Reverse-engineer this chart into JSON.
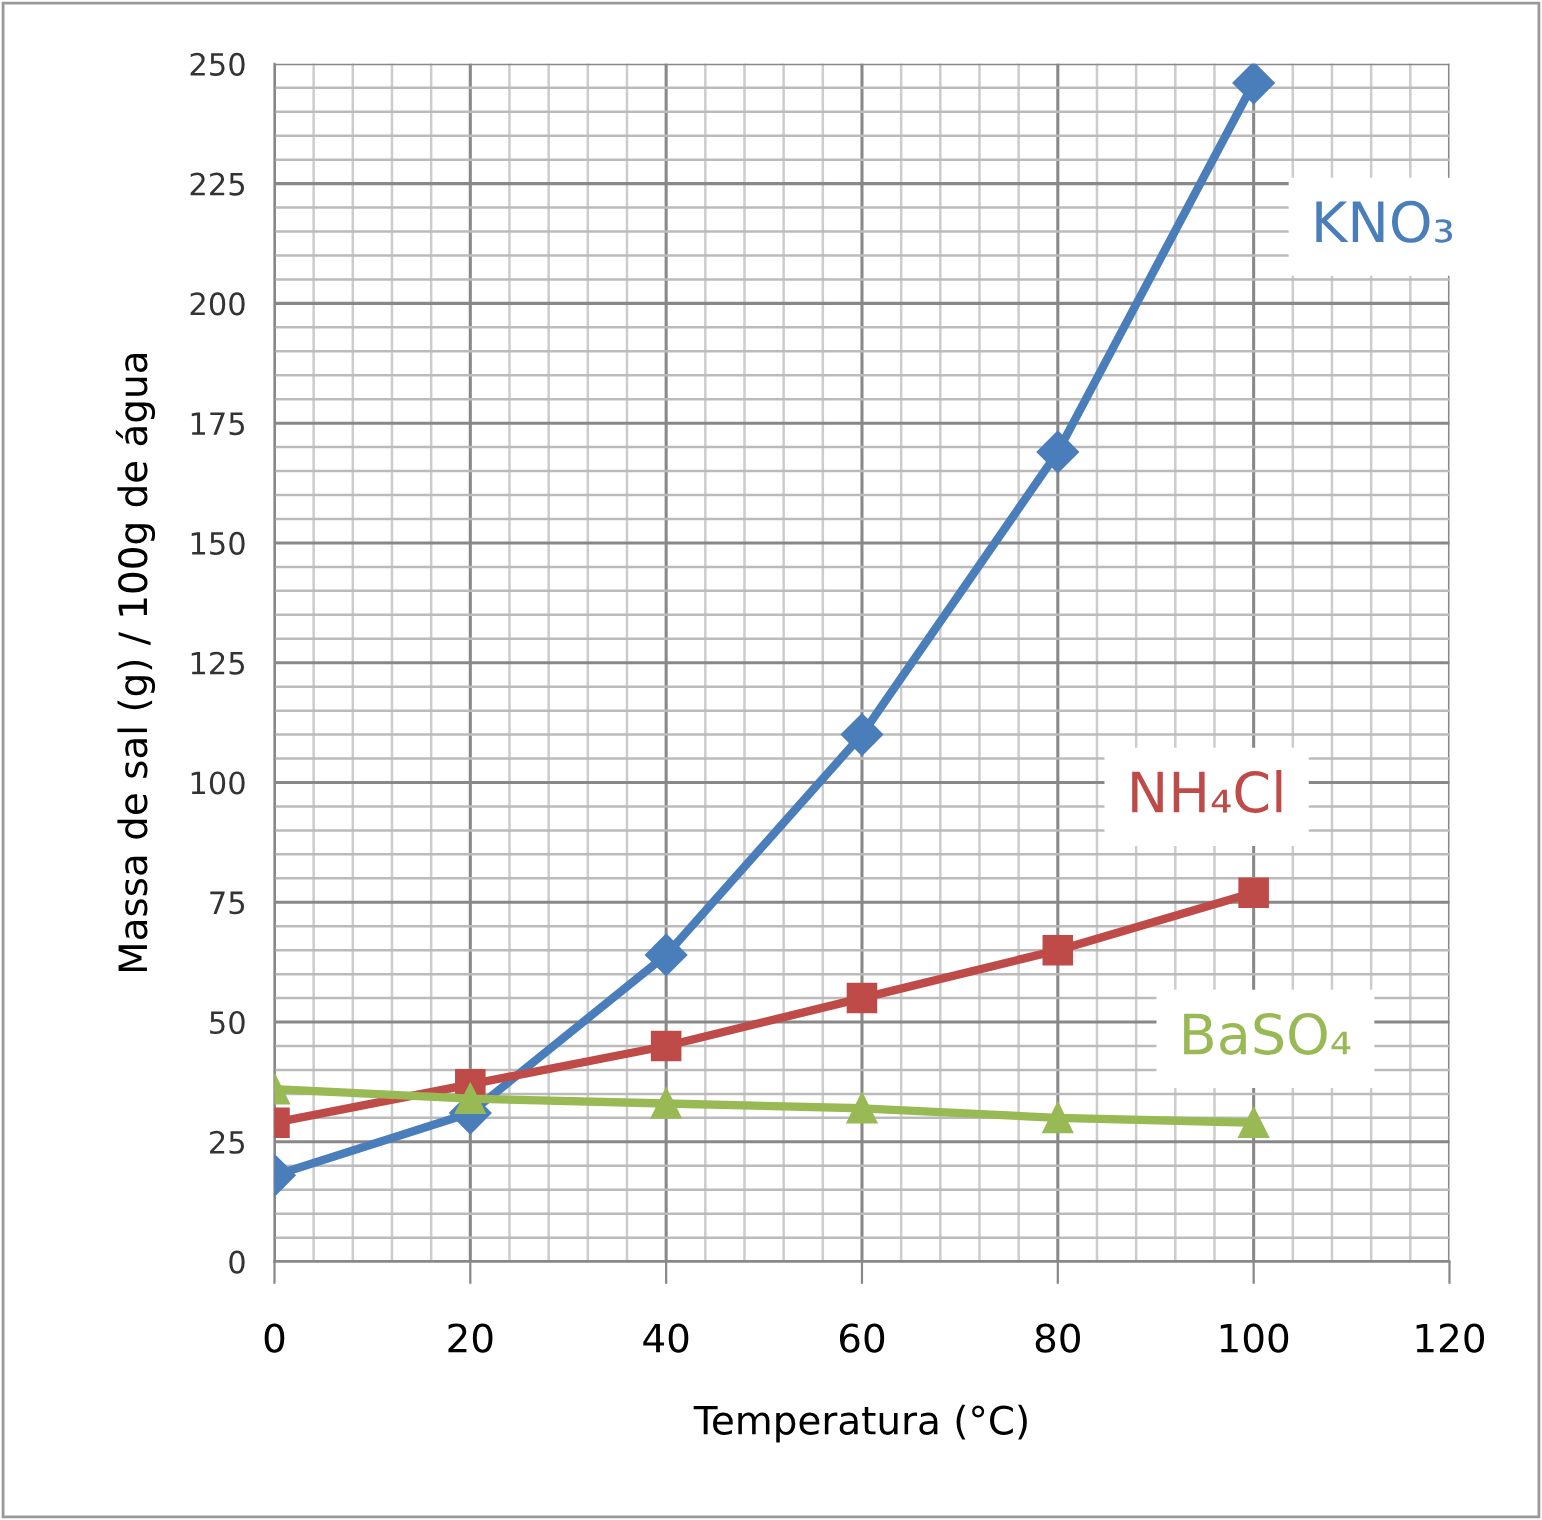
{
  "chart_data": {
    "type": "line",
    "xlabel": "Temperatura (°C)",
    "ylabel": "Massa de sal (g) / 100g de água",
    "x": [
      0,
      20,
      40,
      60,
      80,
      100
    ],
    "series": [
      {
        "name": "KNO₃",
        "color": "#4a7ebb",
        "marker": "diamond",
        "values": [
          18,
          31,
          64,
          110,
          169,
          246
        ]
      },
      {
        "name": "NH₄Cl",
        "color": "#be4b48",
        "marker": "square",
        "values": [
          29,
          37,
          45,
          55,
          65,
          77
        ]
      },
      {
        "name": "BaSO₄",
        "color": "#98b954",
        "marker": "triangle",
        "values": [
          36,
          34,
          33,
          32,
          30,
          29
        ]
      }
    ],
    "xlim": [
      0,
      120
    ],
    "xticks": [
      0,
      20,
      40,
      60,
      80,
      100,
      120
    ],
    "ylim": [
      0,
      250
    ],
    "yticks": [
      0,
      25,
      50,
      75,
      100,
      125,
      150,
      175,
      200,
      225,
      250
    ],
    "grid": true,
    "legend": false
  }
}
